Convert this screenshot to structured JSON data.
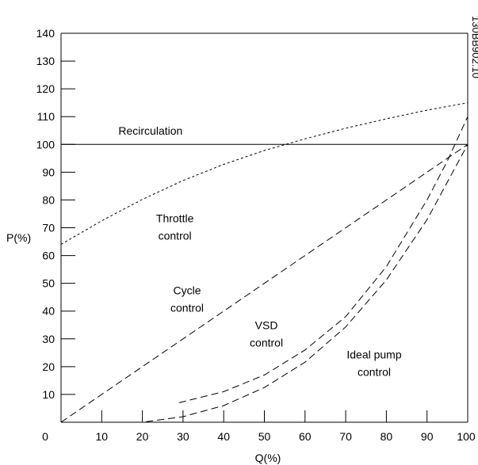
{
  "chart_data": {
    "type": "line",
    "title": "",
    "xlabel": "Q(%)",
    "ylabel": "P(%)",
    "xlim": [
      0,
      100
    ],
    "ylim": [
      0,
      140
    ],
    "xticks": [
      0,
      10,
      20,
      30,
      40,
      50,
      60,
      70,
      80,
      90,
      100
    ],
    "yticks": [
      10,
      20,
      30,
      40,
      50,
      60,
      70,
      80,
      90,
      100,
      110,
      120,
      130,
      140
    ],
    "grid": false,
    "side_code": "130BB902.10",
    "colors": {
      "lines": "#000000",
      "background": "#ffffff"
    },
    "series": [
      {
        "key": "recirculation",
        "style": "solid",
        "x": [
          0,
          100
        ],
        "y": [
          100,
          100
        ]
      },
      {
        "key": "throttle",
        "style": "dotted",
        "x": [
          0,
          10,
          20,
          30,
          40,
          50,
          60,
          70,
          80,
          90,
          100
        ],
        "y": [
          64,
          72.5,
          80.2,
          87,
          92.8,
          97.8,
          102,
          105.8,
          109.2,
          112.3,
          115
        ]
      },
      {
        "key": "cycle",
        "style": "dashed",
        "x": [
          0,
          100
        ],
        "y": [
          0,
          100
        ]
      },
      {
        "key": "vsd",
        "style": "dashed",
        "x": [
          29,
          40,
          50,
          60,
          70,
          80,
          90,
          95,
          100
        ],
        "y": [
          7,
          11,
          17,
          26,
          38,
          56,
          80,
          94,
          110
        ]
      },
      {
        "key": "ideal",
        "style": "dashed",
        "x": [
          10,
          20,
          30,
          40,
          50,
          60,
          70,
          80,
          90,
          100
        ],
        "y": [
          0,
          0,
          2,
          6,
          12.5,
          21.6,
          34.3,
          51.2,
          72.9,
          100
        ]
      }
    ],
    "annotations": [
      {
        "key": "recirculation",
        "lines": [
          "Recirculation"
        ],
        "x": 22,
        "y": 103.5
      },
      {
        "key": "throttle",
        "lines": [
          "Throttle",
          "control"
        ],
        "x": 28,
        "y": 72
      },
      {
        "key": "cycle",
        "lines": [
          "Cycle",
          "control"
        ],
        "x": 31,
        "y": 46
      },
      {
        "key": "vsd",
        "lines": [
          "VSD",
          "control"
        ],
        "x": 50.5,
        "y": 33.5
      },
      {
        "key": "ideal",
        "lines": [
          "Ideal pump",
          "control"
        ],
        "x": 77,
        "y": 23
      }
    ]
  }
}
